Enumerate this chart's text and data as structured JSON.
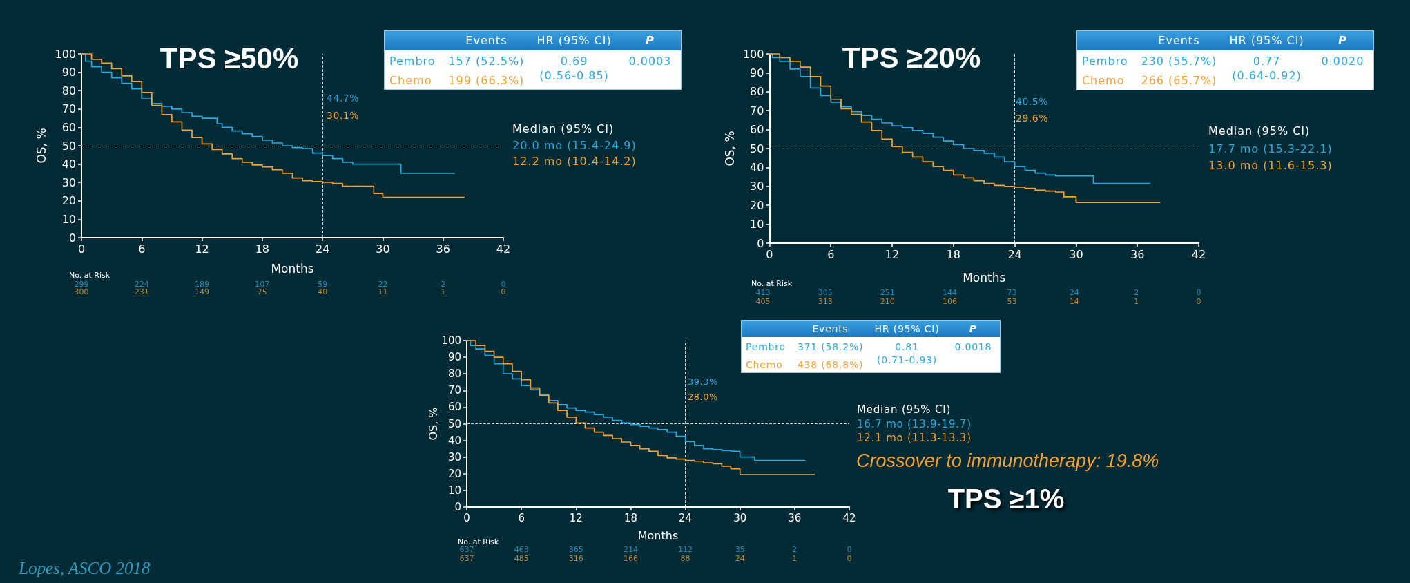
{
  "chart_data": [
    {
      "type": "step",
      "title": "TPS ≥50%",
      "xlabel": "Months",
      "ylabel": "OS, %",
      "xlim": [
        0,
        42
      ],
      "xticks": [
        0,
        6,
        12,
        18,
        24,
        30,
        36,
        42
      ],
      "ylim": [
        0,
        100
      ],
      "yticks": [
        0,
        10,
        20,
        30,
        40,
        50,
        60,
        70,
        80,
        90,
        100
      ],
      "series": [
        {
          "name": "Pembro",
          "color": "#27aae1",
          "x": [
            0,
            0.4,
            1,
            2,
            3,
            4,
            5,
            6,
            7,
            8,
            9,
            10,
            11,
            12,
            13.5,
            14,
            15,
            16,
            17,
            18,
            19,
            20,
            21,
            22,
            23,
            24,
            25,
            26,
            27,
            31.8,
            37.1
          ],
          "values": [
            100,
            96,
            93,
            90,
            87,
            84,
            81,
            75.5,
            73,
            71.5,
            70,
            68,
            66,
            65,
            62,
            60,
            58,
            56.5,
            55,
            53,
            51.5,
            50,
            49,
            48.5,
            46,
            44.7,
            43,
            41,
            40,
            35,
            35
          ]
        },
        {
          "name": "Chemo",
          "color": "#f6a12f",
          "x": [
            0,
            1,
            2,
            3,
            4,
            5,
            6,
            7,
            8,
            9,
            10,
            11,
            12,
            13,
            14,
            15,
            16,
            17,
            18,
            19,
            20,
            21,
            22,
            23,
            24,
            25,
            26,
            29.1,
            30,
            38.1
          ],
          "values": [
            100,
            97,
            95,
            92,
            88,
            85,
            79,
            72,
            67,
            63,
            58.5,
            54.5,
            51,
            48,
            45.5,
            43,
            41,
            39.5,
            38.5,
            37,
            35,
            32.5,
            31,
            30.5,
            30.1,
            29.5,
            28,
            24,
            22,
            22
          ]
        }
      ],
      "ref_lines": [
        {
          "axis": "y",
          "value": 50,
          "color": "#c9d1d3",
          "line_style": "dashed"
        },
        {
          "axis": "x",
          "value": 24,
          "color": "#c9d1d3",
          "line_style": "dashed"
        }
      ],
      "annotations": [
        "44.7%",
        "30.1%",
        "Median (95% CI)",
        "20.0 mo (15.4-24.9)",
        "12.2 mo (10.4-14.2)",
        "Events",
        "HR (95% CI)",
        "P",
        "157 (52.5%)",
        "199 (66.3%)",
        "0.69",
        "(0.56-0.85)",
        "0.0003",
        "No. at Risk",
        "299",
        "224",
        "189",
        "107",
        "59",
        "22",
        "2",
        "0",
        "300",
        "231",
        "149",
        "75",
        "40",
        "11",
        "1",
        "0"
      ]
    },
    {
      "type": "step",
      "title": "TPS ≥20%",
      "xlabel": "Months",
      "ylabel": "OS, %",
      "xlim": [
        0,
        42
      ],
      "xticks": [
        0,
        6,
        12,
        18,
        24,
        30,
        36,
        42
      ],
      "ylim": [
        0,
        100
      ],
      "yticks": [
        0,
        10,
        20,
        30,
        40,
        50,
        60,
        70,
        80,
        90,
        100
      ],
      "series": [
        {
          "name": "Pembro",
          "color": "#27aae1",
          "x": [
            0,
            0.3,
            1,
            2,
            3,
            4,
            5,
            6,
            7,
            8,
            9,
            10,
            11,
            12,
            13,
            14,
            15,
            16,
            17,
            18,
            19,
            20,
            21,
            22,
            23,
            24,
            25,
            26,
            27,
            28,
            31.7,
            37.2
          ],
          "values": [
            100,
            98,
            96,
            92,
            88,
            82,
            78,
            74.5,
            72,
            69.5,
            67.5,
            65.5,
            63.5,
            62,
            61,
            59.5,
            58,
            56,
            54,
            52,
            50,
            49,
            47.5,
            45.5,
            43,
            40.5,
            38.5,
            37,
            36,
            35.5,
            31.5,
            31.5
          ]
        },
        {
          "name": "Chemo",
          "color": "#f6a12f",
          "x": [
            0,
            1,
            2,
            3,
            4,
            5,
            6,
            7,
            8,
            9,
            10,
            11,
            12,
            13,
            14,
            15,
            16,
            17,
            18,
            19,
            20,
            21,
            22,
            23,
            24,
            25,
            26,
            27,
            28,
            28.8,
            30,
            38.2
          ],
          "values": [
            100,
            98,
            96,
            93,
            88,
            83,
            76,
            71,
            68,
            64,
            59.5,
            55,
            51,
            48,
            45.5,
            43,
            40.5,
            38.5,
            36,
            34.5,
            33,
            31.5,
            30.5,
            30,
            29.6,
            29,
            28,
            27.5,
            27,
            24.5,
            21.5,
            21.5
          ]
        }
      ],
      "ref_lines": [
        {
          "axis": "y",
          "value": 50,
          "color": "#c9d1d3",
          "line_style": "dashed"
        },
        {
          "axis": "x",
          "value": 24,
          "color": "#c9d1d3",
          "line_style": "dashed"
        }
      ],
      "annotations": [
        "40.5%",
        "29.6%",
        "Median (95% CI)",
        "17.7 mo (15.3-22.1)",
        "13.0 mo (11.6-15.3)",
        "Events",
        "HR (95% CI)",
        "P",
        "230 (55.7%)",
        "266 (65.7%)",
        "0.77",
        "(0.64-0.92)",
        "0.0020",
        "No. at Risk",
        "413",
        "305",
        "251",
        "144",
        "73",
        "24",
        "2",
        "0",
        "405",
        "313",
        "210",
        "106",
        "53",
        "14",
        "1",
        "0"
      ]
    },
    {
      "type": "step",
      "xlabel": "Months",
      "ylabel": "OS, %",
      "xlim": [
        0,
        42
      ],
      "xticks": [
        0,
        6,
        12,
        18,
        24,
        30,
        36,
        42
      ],
      "ylim": [
        0,
        100
      ],
      "yticks": [
        0,
        10,
        20,
        30,
        40,
        50,
        60,
        70,
        80,
        90,
        100
      ],
      "series": [
        {
          "name": "Pembro",
          "color": "#27aae1",
          "x": [
            0,
            0.4,
            1,
            2,
            3,
            4,
            5,
            6,
            7,
            8,
            9,
            10,
            11,
            12,
            13,
            14,
            15,
            16,
            17,
            18,
            19,
            20,
            21,
            22,
            23,
            24,
            25,
            26,
            27,
            28,
            29,
            30,
            31.6,
            37.1
          ],
          "values": [
            100,
            97,
            95,
            91,
            86,
            80,
            77,
            73,
            70.5,
            67.5,
            64,
            61.5,
            59.5,
            58,
            57,
            55.5,
            54,
            52,
            50.5,
            49.5,
            48.5,
            47.5,
            46.5,
            45,
            42.5,
            39.3,
            37,
            35,
            34.5,
            34,
            33.5,
            30,
            28,
            28
          ]
        },
        {
          "name": "Chemo",
          "color": "#f6a12f",
          "x": [
            0,
            1,
            2,
            3,
            4,
            5,
            6,
            7,
            8,
            9,
            10,
            11,
            12,
            13,
            14,
            15,
            16,
            17,
            18,
            19,
            20,
            21,
            22,
            23,
            24,
            25,
            26,
            27,
            28,
            29,
            30,
            38.2
          ],
          "values": [
            100,
            97,
            93.5,
            90,
            86,
            81.5,
            76.5,
            71.5,
            67,
            62.5,
            58,
            54,
            50.5,
            47.5,
            45,
            43,
            41,
            39,
            37,
            35,
            33.5,
            31,
            29.5,
            28.8,
            28,
            27.5,
            26.5,
            26,
            24.5,
            23,
            19.5,
            19.5
          ]
        }
      ],
      "ref_lines": [
        {
          "axis": "y",
          "value": 50,
          "color": "#c9d1d3",
          "line_style": "dashed"
        },
        {
          "axis": "x",
          "value": 24,
          "color": "#c9d1d3",
          "line_style": "dashed"
        }
      ],
      "annotations": [
        "39.3%",
        "28.0%",
        "Median (95% CI)",
        "16.7 mo (13.9-19.7)",
        "12.1 mo (11.3-13.3)",
        "Events",
        "HR (95% CI)",
        "P",
        "371 (58.2%)",
        "438 (68.8%)",
        "0.81",
        "(0.71-0.93)",
        "0.0018",
        "No. at Risk",
        "637",
        "463",
        "365",
        "214",
        "112",
        "35",
        "2",
        "0",
        "637",
        "485",
        "316",
        "166",
        "88",
        "24",
        "1",
        "0",
        "Crossover to immunotherapy: 19.8%",
        "TPS ≥1%",
        "Lopes, ASCO 2018"
      ]
    }
  ]
}
